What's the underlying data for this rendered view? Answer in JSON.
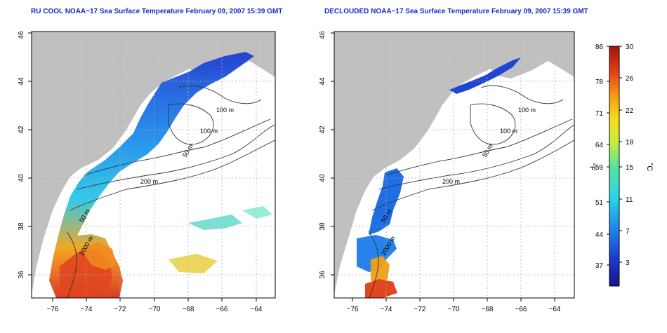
{
  "panels": [
    {
      "title": "RU COOL NOAA−17 Sea Surface Temperature February 09, 2007 15:39 GMT",
      "contour_labels": [
        "100 m",
        "100 m",
        "50 m",
        "200 m",
        "50 m",
        "2000 m"
      ]
    },
    {
      "title": "DECLOUDED NOAA−17 Sea Surface Temperature February 09, 2007 15:39 GMT",
      "contour_labels": [
        "100 m",
        "100 m",
        "50 m",
        "200 m",
        "50 m",
        "2000 m"
      ]
    }
  ],
  "axes": {
    "lon_ticks": [
      "−76",
      "−74",
      "−72",
      "−70",
      "−68",
      "−66",
      "−64"
    ],
    "lat_ticks": [
      "36",
      "38",
      "40",
      "42",
      "44",
      "46"
    ]
  },
  "colorbar": {
    "fahrenheit_unit": "°F",
    "celsius_unit": "°C",
    "fahrenheit_ticks": [
      "86",
      "78",
      "71",
      "64",
      "59",
      "51",
      "44",
      "37"
    ],
    "celsius_ticks": [
      "30",
      "26",
      "22",
      "18",
      "15",
      "11",
      "7",
      "3"
    ]
  },
  "colors": {
    "title": "#1a28c8",
    "land": "#c0c0c0",
    "grid": "#b0b0b0"
  }
}
